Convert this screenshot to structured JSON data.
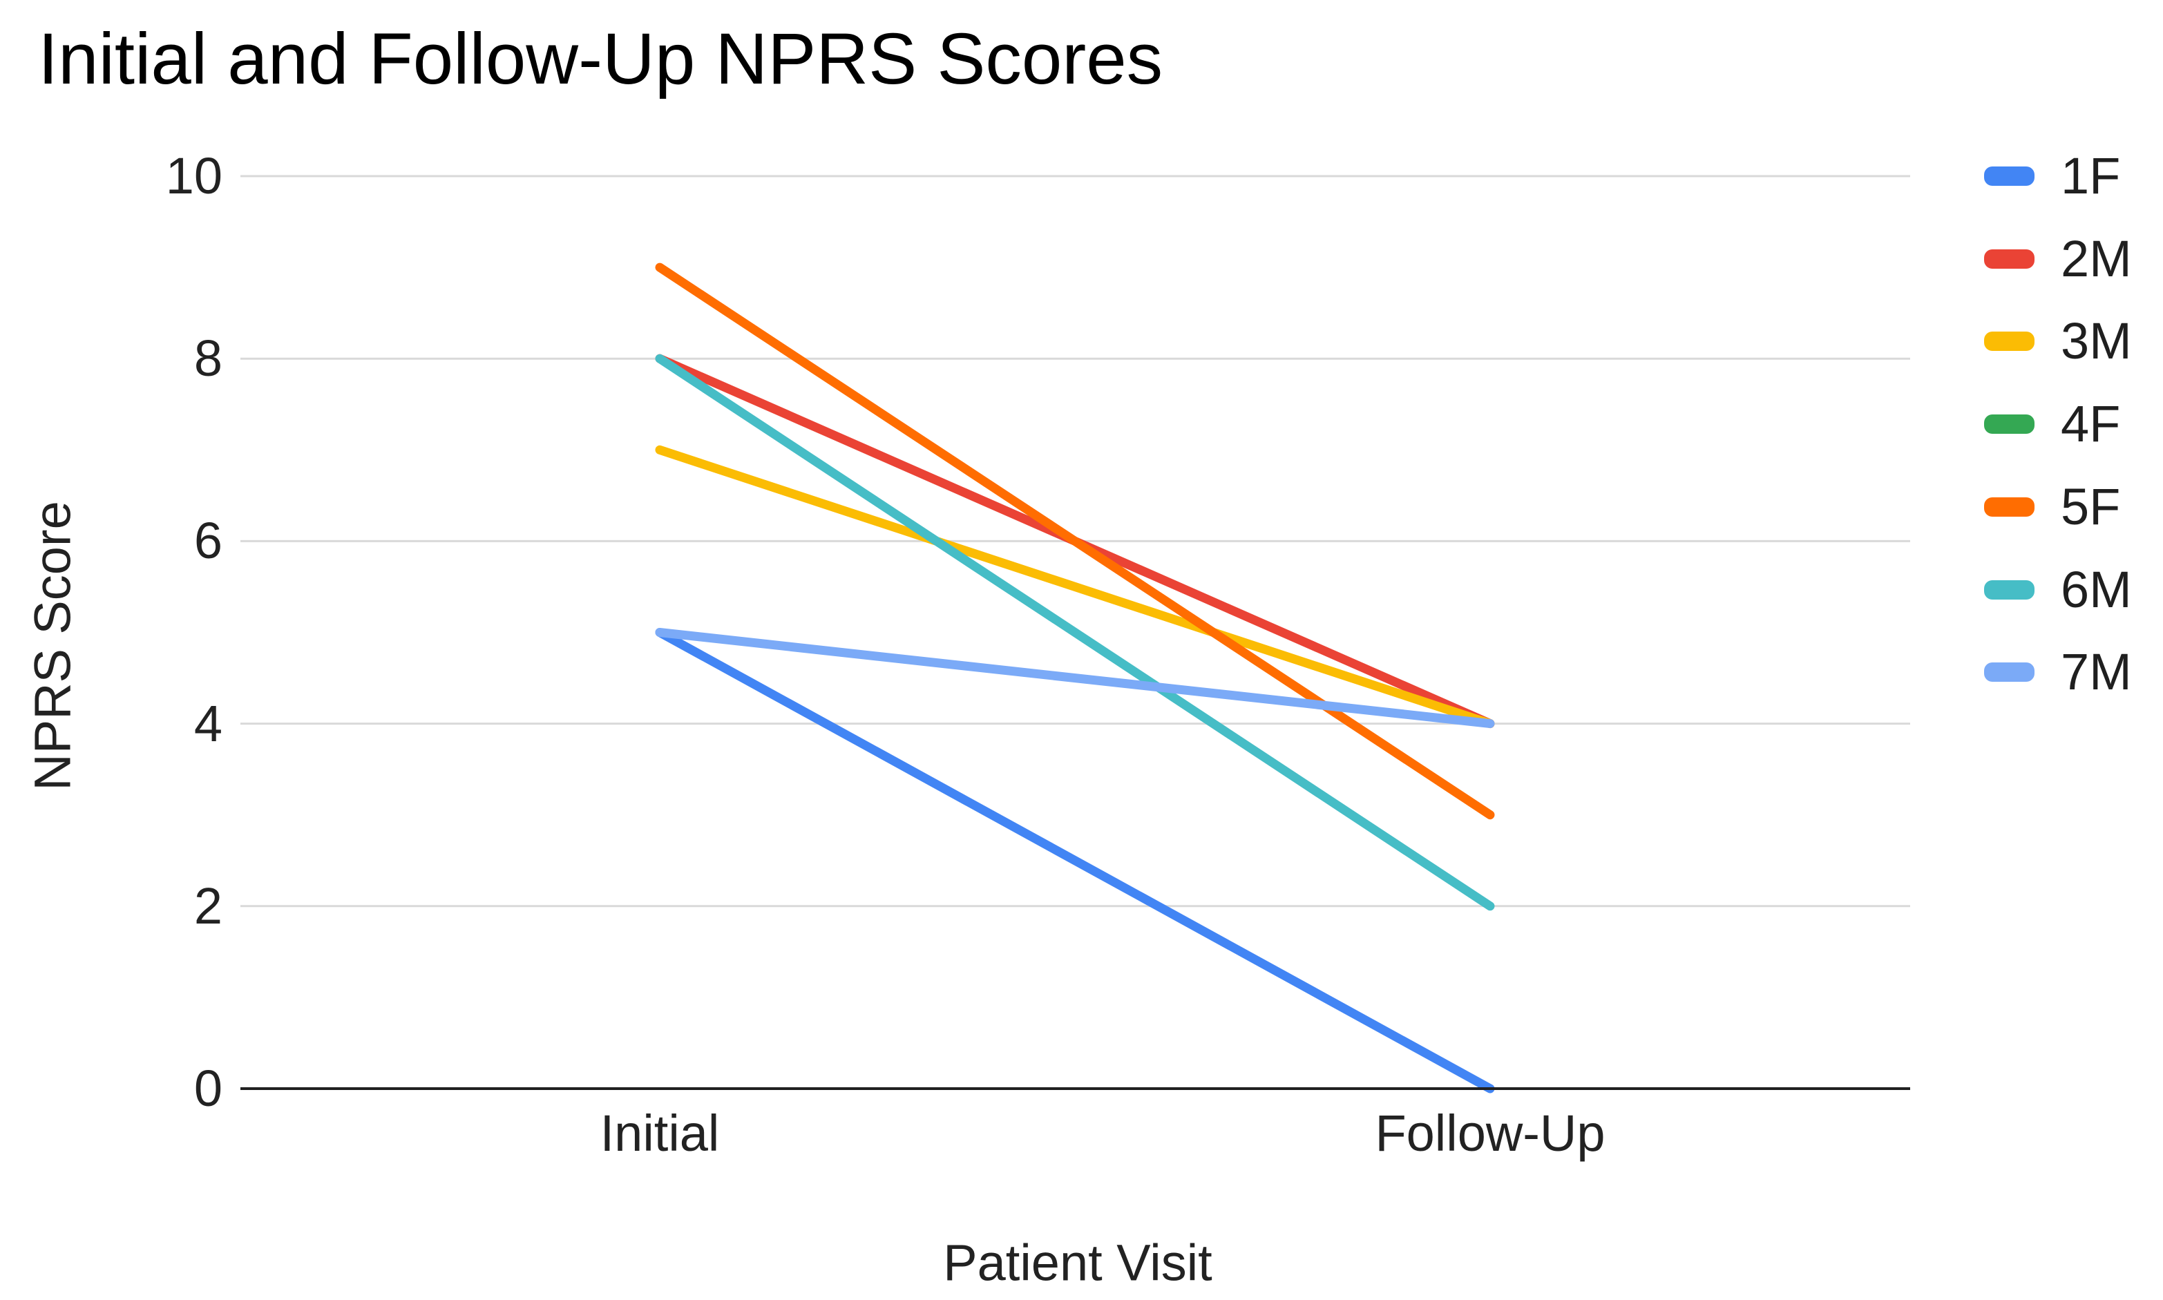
{
  "title": "Initial and Follow-Up NPRS Scores",
  "chart_data": {
    "type": "line",
    "categories": [
      "Initial",
      "Follow-Up"
    ],
    "xlabel": "Patient Visit",
    "ylabel": "NPRS Score",
    "ylim": [
      0,
      10
    ],
    "y_ticks": [
      0,
      2,
      4,
      6,
      8,
      10
    ],
    "grid": true,
    "legend_position": "right",
    "series": [
      {
        "name": "1F",
        "color": "#4285F4",
        "values": [
          5,
          0
        ]
      },
      {
        "name": "2M",
        "color": "#EA4335",
        "values": [
          8,
          4
        ]
      },
      {
        "name": "3M",
        "color": "#FBBC04",
        "values": [
          7,
          4
        ]
      },
      {
        "name": "4F",
        "color": "#34A853",
        "values": [
          null,
          null
        ],
        "line_visible_in_plot": false
      },
      {
        "name": "5F",
        "color": "#FF6D01",
        "values": [
          9,
          3
        ]
      },
      {
        "name": "6M",
        "color": "#46BDC6",
        "values": [
          8,
          2
        ]
      },
      {
        "name": "7M",
        "color": "#7BAAF7",
        "values": [
          5,
          4
        ]
      }
    ],
    "colors": {
      "gridline": "#d9d9d9",
      "axis_line": "#212121",
      "title_text": "#000000",
      "tick_text": "#222222"
    }
  }
}
